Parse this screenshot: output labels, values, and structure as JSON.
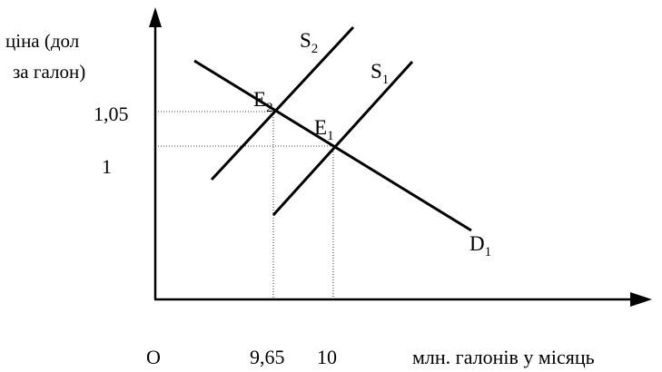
{
  "axes": {
    "y_label_line1": "ціна (дол",
    "y_label_line2": "за галон)",
    "x_label": "млн. галонів у місяць",
    "origin": "O",
    "y_ticks": [
      "1,05",
      "1"
    ],
    "x_ticks": [
      "9,65",
      "10"
    ]
  },
  "curves": {
    "s2": {
      "base": "S",
      "sub": "2"
    },
    "s1": {
      "base": "S",
      "sub": "1"
    },
    "d1": {
      "base": "D",
      "sub": "1"
    }
  },
  "points": {
    "e2": {
      "base": "E",
      "sub": "2"
    },
    "e1": {
      "base": "E",
      "sub": "1"
    }
  },
  "colors": {
    "ink": "#000000",
    "background": "#ffffff"
  }
}
